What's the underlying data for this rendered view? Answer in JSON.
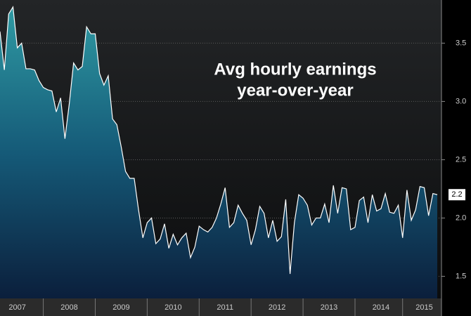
{
  "chart_data": {
    "type": "area",
    "title": [
      "Avg hourly earnings",
      "year-over-year"
    ],
    "categories": [
      null,
      null,
      null,
      null,
      "2007",
      null,
      null,
      null,
      null,
      null,
      null,
      null,
      null,
      null,
      null,
      null,
      "2008",
      null,
      null,
      null,
      null,
      null,
      null,
      null,
      null,
      null,
      null,
      null,
      "2009",
      null,
      null,
      null,
      null,
      null,
      null,
      null,
      null,
      null,
      null,
      null,
      "2010",
      null,
      null,
      null,
      null,
      null,
      null,
      null,
      null,
      null,
      null,
      null,
      "2011",
      null,
      null,
      null,
      null,
      null,
      null,
      null,
      null,
      null,
      null,
      null,
      "2012",
      null,
      null,
      null,
      null,
      null,
      null,
      null,
      null,
      null,
      null,
      null,
      "2013",
      null,
      null,
      null,
      null,
      null,
      null,
      null,
      null,
      null,
      null,
      null,
      "2014",
      null,
      null,
      null,
      null,
      null,
      null,
      null,
      null,
      null,
      "2015",
      null,
      null,
      null
    ],
    "values": [
      3.6,
      3.27,
      3.75,
      3.81,
      3.46,
      3.5,
      3.28,
      3.28,
      3.27,
      3.18,
      3.12,
      3.1,
      3.09,
      2.91,
      3.03,
      2.68,
      2.98,
      3.33,
      3.27,
      3.3,
      3.64,
      3.58,
      3.58,
      3.24,
      3.14,
      3.22,
      2.85,
      2.8,
      2.61,
      2.4,
      2.34,
      2.34,
      2.07,
      1.83,
      1.96,
      2.0,
      1.78,
      1.82,
      1.95,
      1.74,
      1.86,
      1.77,
      1.83,
      1.87,
      1.66,
      1.75,
      1.93,
      1.9,
      1.88,
      1.92,
      2.0,
      2.12,
      2.26,
      1.92,
      1.96,
      2.11,
      2.04,
      1.98,
      1.77,
      1.9,
      2.1,
      2.04,
      1.83,
      1.98,
      1.8,
      1.84,
      2.16,
      1.52,
      1.96,
      2.2,
      2.17,
      2.11,
      1.94,
      2.0,
      2.0,
      2.12,
      1.96,
      2.28,
      2.04,
      2.26,
      2.25,
      1.9,
      1.92,
      2.15,
      2.18,
      1.96,
      2.2,
      2.06,
      2.08,
      2.21,
      2.05,
      2.04,
      2.11,
      1.83,
      2.24,
      1.98,
      2.07,
      2.27,
      2.26,
      2.02,
      2.21,
      2.2
    ],
    "ylim": [
      1.31,
      3.87
    ],
    "yticks": [
      1.5,
      {
        "value": 2,
        "label": "2.0"
      },
      2.5,
      {
        "value": 3,
        "label": "3.0"
      },
      3.5
    ],
    "grid": true,
    "color": "#ffffff"
  }
}
